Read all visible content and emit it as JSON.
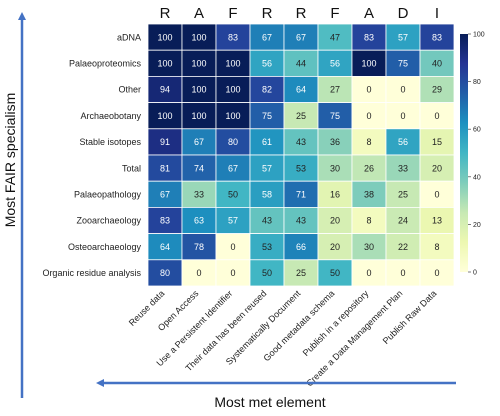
{
  "chart_data": {
    "type": "heatmap",
    "title": "",
    "xlabel": "Most met element",
    "ylabel": "Most FAIR specialism",
    "top_letters": [
      "R",
      "A",
      "F",
      "R",
      "R",
      "F",
      "A",
      "D",
      "I"
    ],
    "columns": [
      "Reuse data",
      "Open Access",
      "Use a Persistent Identifier",
      "Their data has been reused",
      "Systematically Document",
      "Good metadata schema",
      "Publish in a repository",
      "Create a Data Management Plan",
      "Publish Raw Data"
    ],
    "rows": [
      "aDNA",
      "Palaeoproteomics",
      "Other",
      "Archaeobotany",
      "Stable isotopes",
      "Total",
      "Palaeopathology",
      "Zooarchaeology",
      "Osteoarchaeology",
      "Organic residue analysis"
    ],
    "values": [
      [
        100,
        100,
        83,
        67,
        67,
        47,
        83,
        57,
        83
      ],
      [
        100,
        100,
        100,
        56,
        44,
        56,
        100,
        75,
        40
      ],
      [
        94,
        100,
        100,
        82,
        64,
        27,
        0,
        0,
        29
      ],
      [
        100,
        100,
        100,
        75,
        25,
        75,
        0,
        0,
        0
      ],
      [
        91,
        67,
        80,
        61,
        43,
        36,
        8,
        56,
        15
      ],
      [
        81,
        74,
        67,
        57,
        53,
        30,
        26,
        33,
        20
      ],
      [
        67,
        33,
        50,
        58,
        71,
        16,
        38,
        25,
        0
      ],
      [
        83,
        63,
        57,
        43,
        43,
        20,
        8,
        24,
        13
      ],
      [
        64,
        78,
        0,
        53,
        66,
        20,
        30,
        22,
        8
      ],
      [
        80,
        0,
        0,
        50,
        25,
        50,
        0,
        0,
        0
      ]
    ],
    "colorscale": "YlGnBu",
    "vmin": 0,
    "vmax": 100,
    "colorbar_ticks": [
      0,
      20,
      40,
      60,
      80,
      100
    ],
    "grid": true,
    "legend": "colorbar-right"
  }
}
